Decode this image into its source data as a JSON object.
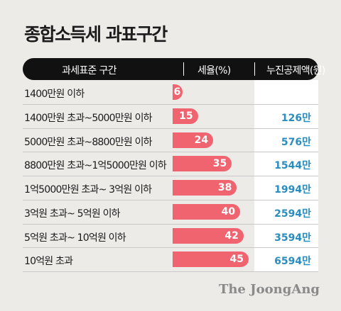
{
  "brand": "The JoongAng",
  "chart_data": {
    "type": "table",
    "title": "종합소득세 과표구간",
    "columns": [
      "과세표준 구간",
      "세율(%)",
      "누진공제액(원)"
    ],
    "rows": [
      {
        "bracket": "1400만원 이하",
        "rate": 6,
        "deduction": ""
      },
      {
        "bracket": "1400만원 초과~5000만원 이하",
        "rate": 15,
        "deduction": "126만"
      },
      {
        "bracket": "5000만원 초과~8800만원 이하",
        "rate": 24,
        "deduction": "576만"
      },
      {
        "bracket": "8800만원 초과~1억5000만원 이하",
        "rate": 35,
        "deduction": "1544만"
      },
      {
        "bracket": "1억5000만원 초과~ 3억원 이하",
        "rate": 38,
        "deduction": "1994만"
      },
      {
        "bracket": "3억원 초과~ 5억원 이하",
        "rate": 40,
        "deduction": "2594만"
      },
      {
        "bracket": "5억원 초과~ 10억원 이하",
        "rate": 42,
        "deduction": "3594만"
      },
      {
        "bracket": "10억원 초과",
        "rate": 45,
        "deduction": "6594만"
      }
    ],
    "bar_color": "#f06470",
    "deduction_color": "#2a8dbf"
  }
}
